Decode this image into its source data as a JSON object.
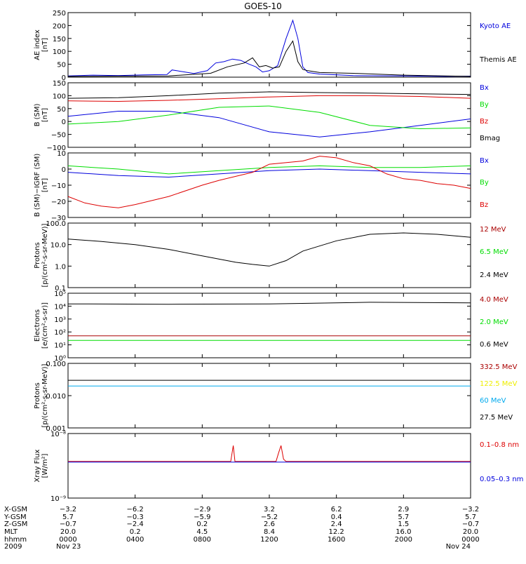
{
  "title": "GOES-10",
  "colors": {
    "black": "#000000",
    "blue": "#0000dd",
    "red": "#dd0000",
    "green": "#00dd00",
    "darkred": "#aa0000",
    "cyan": "#00aaee",
    "yellow": "#eeee00"
  },
  "x_ticks": [
    "0000",
    "0400",
    "0800",
    "1200",
    "1600",
    "2000",
    "0000"
  ],
  "chart_data": [
    {
      "type": "line",
      "ylabel": "AE index\n[nT]",
      "ylim": [
        0,
        250
      ],
      "yticks": [
        "0",
        "50",
        "100",
        "150",
        "200",
        "250"
      ],
      "legend": [
        {
          "name": "Kyoto AE",
          "color": "#0000dd"
        },
        {
          "name": "Themis AE",
          "color": "#000000"
        }
      ],
      "series": [
        {
          "name": "Kyoto AE",
          "color": "#0000dd",
          "x": [
            0,
            1.5,
            3,
            4.5,
            5.9,
            6.2,
            7.5,
            8.3,
            8.8,
            9.3,
            9.8,
            10.3,
            10.8,
            11.2,
            11.6,
            12.0,
            12.5,
            13.0,
            13.4,
            13.7,
            14.0,
            14.3,
            15,
            17,
            20,
            22.5,
            24
          ],
          "y": [
            5,
            8,
            6,
            9,
            10,
            28,
            14,
            25,
            55,
            60,
            70,
            65,
            50,
            40,
            20,
            25,
            45,
            150,
            220,
            150,
            40,
            18,
            12,
            6,
            5,
            3,
            4
          ]
        },
        {
          "name": "Themis AE",
          "color": "#000000",
          "x": [
            0,
            3,
            6,
            8.5,
            9.5,
            10.5,
            11.0,
            11.4,
            11.8,
            12.2,
            12.6,
            13.0,
            13.4,
            13.7,
            14.0,
            14.3,
            15,
            17,
            20,
            22.5,
            24
          ],
          "y": [
            3,
            4,
            5,
            15,
            40,
            55,
            75,
            40,
            45,
            35,
            40,
            100,
            140,
            60,
            30,
            25,
            18,
            15,
            8,
            5,
            3
          ]
        }
      ]
    },
    {
      "type": "line",
      "ylabel": "B (SM)\n[nT]",
      "ylim": [
        -100,
        150
      ],
      "yticks": [
        "−100",
        "−50",
        "0",
        "50",
        "100",
        "150"
      ],
      "legend": [
        {
          "name": "Bx",
          "color": "#0000dd"
        },
        {
          "name": "By",
          "color": "#00dd00"
        },
        {
          "name": "Bz",
          "color": "#dd0000"
        },
        {
          "name": "Bmag",
          "color": "#000000"
        }
      ],
      "series": [
        {
          "name": "Bx",
          "color": "#0000dd",
          "x": [
            0,
            3,
            6,
            9,
            12,
            15,
            18,
            21,
            24
          ],
          "y": [
            20,
            40,
            40,
            15,
            -40,
            -60,
            -40,
            -15,
            10
          ]
        },
        {
          "name": "By",
          "color": "#00dd00",
          "x": [
            0,
            3,
            6,
            9,
            12,
            15,
            18,
            21,
            24
          ],
          "y": [
            -10,
            0,
            25,
            55,
            60,
            35,
            -15,
            -28,
            -25
          ]
        },
        {
          "name": "Bz",
          "color": "#dd0000",
          "x": [
            0,
            3,
            6,
            9,
            12,
            15,
            18,
            21,
            24
          ],
          "y": [
            80,
            78,
            82,
            88,
            95,
            100,
            100,
            97,
            90
          ]
        },
        {
          "name": "Bmag",
          "color": "#000000",
          "x": [
            0,
            3,
            6,
            9,
            12,
            15,
            18,
            21,
            24
          ],
          "y": [
            90,
            92,
            100,
            110,
            115,
            112,
            110,
            107,
            105
          ]
        }
      ]
    },
    {
      "type": "line",
      "ylabel": "B (SM)−IGRF (SM)\n[nT]",
      "ylim": [
        -30,
        10
      ],
      "yticks": [
        "−30",
        "−20",
        "−10",
        "0",
        "10"
      ],
      "legend": [
        {
          "name": "Bx",
          "color": "#0000dd"
        },
        {
          "name": "By",
          "color": "#00dd00"
        },
        {
          "name": "Bz",
          "color": "#dd0000"
        }
      ],
      "series": [
        {
          "name": "Bx",
          "color": "#0000dd",
          "x": [
            0,
            3,
            6,
            9,
            12,
            15,
            18,
            21,
            24
          ],
          "y": [
            -2,
            -4,
            -5,
            -3,
            -1,
            0,
            -1,
            -2,
            -3
          ]
        },
        {
          "name": "By",
          "color": "#00dd00",
          "x": [
            0,
            3,
            6,
            9,
            12,
            15,
            18,
            21,
            24
          ],
          "y": [
            2,
            0,
            -3,
            -1,
            1,
            2,
            1,
            1,
            2
          ]
        },
        {
          "name": "Bz",
          "color": "#dd0000",
          "x": [
            0,
            1,
            2,
            3,
            4,
            6,
            8,
            9,
            11,
            12,
            14,
            15,
            16,
            17,
            18,
            19,
            20,
            21,
            22,
            23,
            24
          ],
          "y": [
            -17,
            -21,
            -23,
            -24,
            -22,
            -17,
            -10,
            -7,
            -2,
            3,
            5,
            8,
            7,
            4,
            2,
            -3,
            -6,
            -7,
            -9,
            -10,
            -12
          ]
        }
      ]
    },
    {
      "type": "line",
      "ylabel": "Protons\n[p/(cm²-s-sr-MeV)]",
      "yscale": "log",
      "ylim": [
        0.1,
        100
      ],
      "yticks": [
        "0.1",
        "1.0",
        "10.0",
        "100.0"
      ],
      "legend": [
        {
          "name": "12 MeV",
          "color": "#aa0000"
        },
        {
          "name": "6.5 MeV",
          "color": "#00dd00"
        },
        {
          "name": "2.4 MeV",
          "color": "#000000"
        }
      ],
      "series": [
        {
          "name": "2.4 MeV",
          "color": "#000000",
          "x": [
            0,
            2,
            4,
            6,
            8,
            10,
            11,
            12,
            13,
            14,
            16,
            18,
            20,
            22,
            24
          ],
          "y": [
            18,
            14,
            10,
            6,
            3,
            1.5,
            1.2,
            1.0,
            1.8,
            5,
            15,
            30,
            35,
            30,
            22
          ]
        }
      ]
    },
    {
      "type": "line",
      "ylabel": "Electrons\n[e/(cm²-s-sr)]",
      "yscale": "log",
      "ylim": [
        1,
        100000
      ],
      "yticks": [
        "10⁰",
        "10¹",
        "10²",
        "10³",
        "10⁴",
        "10⁵"
      ],
      "legend": [
        {
          "name": "4.0 MeV",
          "color": "#aa0000"
        },
        {
          "name": "2.0 MeV",
          "color": "#00dd00"
        },
        {
          "name": "0.6 MeV",
          "color": "#000000"
        }
      ],
      "series": [
        {
          "name": "0.6 MeV",
          "color": "#000000",
          "x": [
            0,
            6,
            12,
            18,
            24
          ],
          "y": [
            15000,
            14000,
            15000,
            20000,
            18000
          ]
        },
        {
          "name": "4.0 MeV",
          "color": "#aa0000",
          "x": [
            0,
            12,
            24
          ],
          "y": [
            50,
            50,
            50
          ]
        },
        {
          "name": "2.0 MeV",
          "color": "#00dd00",
          "x": [
            0,
            12,
            24
          ],
          "y": [
            22,
            22,
            22
          ]
        }
      ]
    },
    {
      "type": "line",
      "ylabel": "Protons\n[p/(cm²-s-sr-MeV)]",
      "yscale": "log",
      "ylim": [
        0.001,
        0.1
      ],
      "yticks": [
        "0.001",
        "0.010",
        "0.100"
      ],
      "legend": [
        {
          "name": "332.5 MeV",
          "color": "#aa0000"
        },
        {
          "name": "122.5 MeV",
          "color": "#eeee00"
        },
        {
          "name": "60 MeV",
          "color": "#00aaee"
        },
        {
          "name": "27.5 MeV",
          "color": "#000000"
        }
      ],
      "series": [
        {
          "name": "27.5 MeV",
          "color": "#000000",
          "x": [
            0,
            24
          ],
          "y": [
            0.03,
            0.03
          ]
        },
        {
          "name": "60 MeV",
          "color": "#00aaee",
          "x": [
            0,
            24
          ],
          "y": [
            0.02,
            0.02
          ]
        }
      ]
    },
    {
      "type": "line",
      "ylabel": "Xray Flux\n[W/m²]",
      "yscale": "log",
      "ylim": [
        1e-09,
        1e-08
      ],
      "yticks": [
        "10⁻⁹",
        "10⁻⁸"
      ],
      "legend": [
        {
          "name": "0.1–0.8 nm",
          "color": "#dd0000"
        },
        {
          "name": "0.05–0.3 nm",
          "color": "#0000dd"
        }
      ],
      "series": [
        {
          "name": "0.1–0.8 nm",
          "color": "#dd0000",
          "x": [
            0,
            9.7,
            9.85,
            9.95,
            10.1,
            12.4,
            12.55,
            12.7,
            12.85,
            13.0,
            24
          ],
          "y": [
            3.7e-09,
            3.7e-09,
            6.5e-09,
            3.7e-09,
            3.7e-09,
            3.7e-09,
            5e-09,
            6.5e-09,
            4e-09,
            3.7e-09,
            3.7e-09
          ]
        },
        {
          "name": "0.05–0.3 nm",
          "color": "#0000dd",
          "x": [
            0,
            24
          ],
          "y": [
            3.6e-09,
            3.6e-09
          ]
        }
      ]
    }
  ],
  "orbit_table": {
    "rows": [
      {
        "label": "X-GSM",
        "values": [
          "−3.2",
          "−6.2",
          "−2.9",
          "3.2",
          "6.2",
          "2.9",
          "−3.2"
        ]
      },
      {
        "label": "Y-GSM",
        "values": [
          "5.7",
          "−0.3",
          "−5.9",
          "−5.2",
          "0.4",
          "5.7",
          "5.7"
        ]
      },
      {
        "label": "Z-GSM",
        "values": [
          "−0.7",
          "−2.4",
          "0.2",
          "2.6",
          "2.4",
          "1.5",
          "−0.7"
        ]
      },
      {
        "label": "MLT",
        "values": [
          "20.0",
          "0.2",
          "4.5",
          "8.4",
          "12.2",
          "16.0",
          "20.0"
        ]
      },
      {
        "label": "hhmm",
        "values": [
          "0000",
          "0400",
          "0800",
          "1200",
          "1600",
          "2000",
          "0000"
        ]
      }
    ],
    "year": "2009",
    "date_start": "Nov 23",
    "date_end": "Nov 24"
  }
}
